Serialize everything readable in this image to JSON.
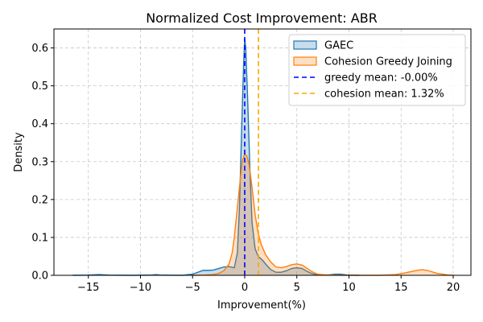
{
  "chart_data": {
    "type": "area",
    "title": "Normalized Cost Improvement: ABR",
    "xlabel": "Improvement(%)",
    "ylabel": "Density",
    "xlim": [
      -18.3,
      21.7
    ],
    "ylim": [
      0,
      0.65
    ],
    "xticks": [
      -15,
      -10,
      -5,
      0,
      5,
      10,
      15,
      20
    ],
    "yticks": [
      0.0,
      0.1,
      0.2,
      0.3,
      0.4,
      0.5,
      0.6
    ],
    "grid": true,
    "legend_position": "top-right",
    "series": [
      {
        "name": "GAEC",
        "color": "#1f77b4",
        "fill": "#1f77b4",
        "points": [
          [
            -16.5,
            0.0
          ],
          [
            -15.0,
            0.0005
          ],
          [
            -14.0,
            0.002
          ],
          [
            -13.0,
            0.0005
          ],
          [
            -11.0,
            0.0
          ],
          [
            -9.0,
            0.0005
          ],
          [
            -8.5,
            0.002
          ],
          [
            -8.0,
            0.0005
          ],
          [
            -6.0,
            0.0
          ],
          [
            -5.0,
            0.003
          ],
          [
            -4.5,
            0.008
          ],
          [
            -4.0,
            0.013
          ],
          [
            -3.5,
            0.013
          ],
          [
            -3.0,
            0.014
          ],
          [
            -2.5,
            0.018
          ],
          [
            -2.0,
            0.022
          ],
          [
            -1.5,
            0.023
          ],
          [
            -1.0,
            0.02
          ],
          [
            -0.7,
            0.06
          ],
          [
            -0.5,
            0.18
          ],
          [
            -0.3,
            0.38
          ],
          [
            -0.1,
            0.56
          ],
          [
            0.0,
            0.625
          ],
          [
            0.1,
            0.6
          ],
          [
            0.3,
            0.45
          ],
          [
            0.5,
            0.28
          ],
          [
            0.7,
            0.14
          ],
          [
            1.0,
            0.07
          ],
          [
            1.3,
            0.05
          ],
          [
            1.7,
            0.04
          ],
          [
            2.0,
            0.03
          ],
          [
            2.5,
            0.015
          ],
          [
            3.0,
            0.008
          ],
          [
            3.5,
            0.008
          ],
          [
            4.0,
            0.012
          ],
          [
            4.5,
            0.018
          ],
          [
            5.0,
            0.02
          ],
          [
            5.5,
            0.018
          ],
          [
            6.0,
            0.01
          ],
          [
            6.5,
            0.004
          ],
          [
            7.0,
            0.001
          ],
          [
            8.0,
            0.001
          ],
          [
            8.7,
            0.003
          ],
          [
            9.2,
            0.003
          ],
          [
            9.8,
            0.001
          ],
          [
            11.0,
            0.0
          ]
        ]
      },
      {
        "name": "Cohesion Greedy Joining",
        "color": "#ff7f0e",
        "fill": "#ff7f0e",
        "points": [
          [
            -5.0,
            0.0
          ],
          [
            -4.0,
            0.0005
          ],
          [
            -3.0,
            0.002
          ],
          [
            -2.5,
            0.005
          ],
          [
            -2.0,
            0.012
          ],
          [
            -1.5,
            0.03
          ],
          [
            -1.2,
            0.06
          ],
          [
            -1.0,
            0.1
          ],
          [
            -0.7,
            0.18
          ],
          [
            -0.4,
            0.26
          ],
          [
            -0.2,
            0.305
          ],
          [
            0.0,
            0.32
          ],
          [
            0.2,
            0.315
          ],
          [
            0.4,
            0.295
          ],
          [
            0.6,
            0.255
          ],
          [
            0.8,
            0.21
          ],
          [
            1.0,
            0.16
          ],
          [
            1.3,
            0.11
          ],
          [
            1.6,
            0.08
          ],
          [
            2.0,
            0.055
          ],
          [
            2.5,
            0.035
          ],
          [
            3.0,
            0.022
          ],
          [
            3.5,
            0.02
          ],
          [
            4.0,
            0.023
          ],
          [
            4.5,
            0.028
          ],
          [
            5.0,
            0.03
          ],
          [
            5.5,
            0.027
          ],
          [
            6.0,
            0.018
          ],
          [
            6.5,
            0.009
          ],
          [
            7.0,
            0.003
          ],
          [
            8.0,
            0.0005
          ],
          [
            10.0,
            0.0
          ],
          [
            13.0,
            0.0
          ],
          [
            14.5,
            0.002
          ],
          [
            15.5,
            0.007
          ],
          [
            16.5,
            0.013
          ],
          [
            17.0,
            0.015
          ],
          [
            17.5,
            0.013
          ],
          [
            18.5,
            0.005
          ],
          [
            19.5,
            0.001
          ],
          [
            20.0,
            0.0
          ]
        ]
      }
    ],
    "vlines": [
      {
        "x": -0.0,
        "color": "#0000ff",
        "label": "greedy mean: -0.00%"
      },
      {
        "x": 1.32,
        "color": "#ffa500",
        "label": "cohesion mean: 1.32%"
      }
    ]
  }
}
